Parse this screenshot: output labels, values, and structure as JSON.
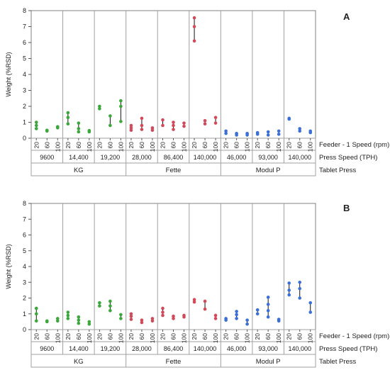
{
  "colors": {
    "KG": "#3aa83a",
    "Fette": "#d24a5a",
    "Modul P": "#3b6fd8"
  },
  "labels": {
    "feeder": "Feeder - 1 Speed (rpm)",
    "press_speed": "Press Speed (TPH)",
    "tablet_press": "Tablet Press"
  },
  "chart_data": [
    {
      "type": "scatter",
      "title": "A",
      "ylabel": "Weight (%RSD)",
      "ylim": [
        0,
        8
      ],
      "yticks": [
        0,
        1,
        2,
        3,
        4,
        5,
        6,
        7,
        8
      ],
      "feeder_ticks": [
        "20",
        "60",
        "100"
      ],
      "groups": [
        {
          "press": "KG",
          "speeds": [
            {
              "speed": "9600",
              "values": [
                [
                  0.6,
                  0.8,
                  1.0
                ],
                [
                  0.45,
                  0.5
                ],
                [
                  0.65,
                  0.72
                ]
              ]
            },
            {
              "speed": "14,400",
              "values": [
                [
                  0.9,
                  1.3,
                  1.6
                ],
                [
                  0.4,
                  0.6,
                  0.95
                ],
                [
                  0.4,
                  0.48
                ]
              ]
            },
            {
              "speed": "19,200",
              "values": [
                [
                  1.85,
                  2.0
                ],
                [
                  0.8,
                  1.4
                ],
                [
                  1.05,
                  2.0,
                  2.35
                ]
              ]
            }
          ]
        },
        {
          "press": "Fette",
          "speeds": [
            {
              "speed": "28,000",
              "values": [
                [
                  0.5,
                  0.65,
                  0.8
                ],
                [
                  0.55,
                  0.8,
                  1.25
                ],
                [
                  0.5,
                  0.65
                ]
              ]
            },
            {
              "speed": "86,400",
              "values": [
                [
                  0.8,
                  1.15
                ],
                [
                  0.55,
                  0.8,
                  1.0
                ],
                [
                  0.75,
                  0.95
                ]
              ]
            },
            {
              "speed": "140,000",
              "values": [
                [
                  6.1,
                  7.0,
                  7.55
                ],
                [
                  0.9,
                  1.1
                ],
                [
                  0.95,
                  1.3
                ]
              ]
            }
          ]
        },
        {
          "press": "Modul P",
          "speeds": [
            {
              "speed": "46,000",
              "values": [
                [
                  0.3,
                  0.45
                ],
                [
                  0.2,
                  0.3
                ],
                [
                  0.2,
                  0.3
                ]
              ]
            },
            {
              "speed": "93,000",
              "values": [
                [
                  0.25,
                  0.35
                ],
                [
                  0.2,
                  0.4
                ],
                [
                  0.25,
                  0.45
                ]
              ]
            },
            {
              "speed": "140,000",
              "values": [
                [
                  1.2,
                  1.25
                ],
                [
                  0.45,
                  0.6
                ],
                [
                  0.35,
                  0.45
                ]
              ]
            }
          ]
        }
      ]
    },
    {
      "type": "scatter",
      "title": "B",
      "ylabel": "Weight (%RSD)",
      "ylim": [
        0,
        8
      ],
      "yticks": [
        0,
        1,
        2,
        3,
        4,
        5,
        6,
        7,
        8
      ],
      "feeder_ticks": [
        "20",
        "60",
        "100"
      ],
      "groups": [
        {
          "press": "KG",
          "speeds": [
            {
              "speed": "9600",
              "values": [
                [
                  0.55,
                  1.0,
                  1.35
                ],
                [
                  0.5,
                  0.55
                ],
                [
                  0.55,
                  0.7
                ]
              ]
            },
            {
              "speed": "14,400",
              "values": [
                [
                  0.7,
                  0.9,
                  1.1
                ],
                [
                  0.4,
                  0.6,
                  0.8
                ],
                [
                  0.35,
                  0.5
                ]
              ]
            },
            {
              "speed": "19,200",
              "values": [
                [
                  1.5,
                  1.7
                ],
                [
                  1.2,
                  1.5,
                  1.8
                ],
                [
                  0.7,
                  0.95
                ]
              ]
            }
          ]
        },
        {
          "press": "Fette",
          "speeds": [
            {
              "speed": "28,000",
              "values": [
                [
                  0.65,
                  0.85,
                  1.0
                ],
                [
                  0.45,
                  0.6
                ],
                [
                  0.55,
                  0.7
                ]
              ]
            },
            {
              "speed": "86,400",
              "values": [
                [
                  0.9,
                  1.1,
                  1.35
                ],
                [
                  0.7,
                  0.85
                ],
                [
                  0.8,
                  0.9
                ]
              ]
            },
            {
              "speed": "140,000",
              "values": [
                [
                  1.75,
                  1.9
                ],
                [
                  1.3,
                  1.8
                ],
                [
                  0.7,
                  0.9
                ]
              ]
            }
          ]
        },
        {
          "press": "Modul P",
          "speeds": [
            {
              "speed": "46,000",
              "values": [
                [
                  0.6,
                  0.7
                ],
                [
                  0.7,
                  0.95,
                  1.15
                ],
                [
                  0.35,
                  0.6
                ]
              ]
            },
            {
              "speed": "93,000",
              "values": [
                [
                  1.0,
                  1.25
                ],
                [
                  0.8,
                  1.2,
                  1.6,
                  2.05
                ],
                [
                  0.55,
                  0.65
                ]
              ]
            },
            {
              "speed": "140,000",
              "values": [
                [
                  2.2,
                  2.5,
                  2.95
                ],
                [
                  2.0,
                  2.6,
                  3.0
                ],
                [
                  1.1,
                  1.7
                ]
              ]
            }
          ]
        }
      ]
    }
  ]
}
